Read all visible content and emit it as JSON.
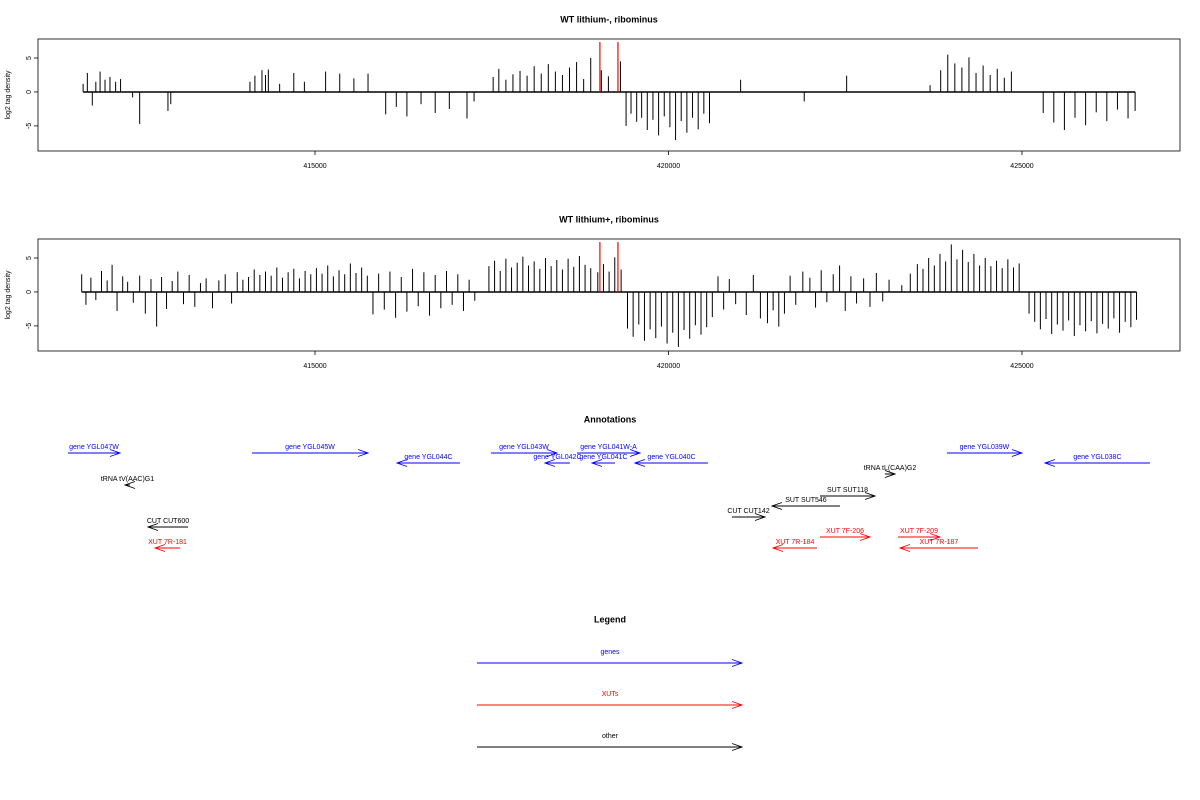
{
  "chart_data": [
    {
      "type": "spike",
      "title": "WT lithium-, ribominus",
      "y_label": "log2 tag density",
      "color": "#000000",
      "xlim": [
        411082,
        427235
      ],
      "ylim": [
        -8.7,
        7.8
      ],
      "xticks": [
        415000,
        420000,
        425000
      ],
      "yticks": [
        -5,
        0,
        5
      ],
      "vlines": {
        "x": [
          419030,
          419285
        ],
        "color": "#ff0000"
      },
      "x": [
        411720,
        411780,
        411850,
        411900,
        411960,
        412030,
        412100,
        412180,
        412250,
        412420,
        412520,
        412920,
        412960,
        414080,
        414150,
        414250,
        414300,
        414340,
        414500,
        414700,
        414850,
        415150,
        415350,
        415550,
        415750,
        416000,
        416150,
        416300,
        416500,
        416700,
        416900,
        417150,
        417250,
        417520,
        417600,
        417700,
        417800,
        417900,
        418000,
        418100,
        418200,
        418300,
        418400,
        418500,
        418600,
        418700,
        418800,
        418900,
        419050,
        419150,
        419320,
        419400,
        419470,
        419550,
        419620,
        419700,
        419780,
        419860,
        419940,
        420020,
        420100,
        420180,
        420260,
        420340,
        420420,
        420500,
        420580,
        421020,
        421920,
        422520,
        423700,
        423850,
        423950,
        424050,
        424150,
        424250,
        424350,
        424450,
        424550,
        424650,
        424750,
        424850,
        425300,
        425450,
        425600,
        425750,
        425900,
        426050,
        426200,
        426350,
        426500,
        426600
      ],
      "values": [
        1.2,
        2.8,
        -2,
        1.5,
        3,
        1.8,
        2.2,
        1.5,
        1.9,
        -0.8,
        -4.7,
        -2.8,
        -1.8,
        1.5,
        2.4,
        3.2,
        2.5,
        3.3,
        1.2,
        2.8,
        1.5,
        3.0,
        2.7,
        2.0,
        2.7,
        -3.3,
        -2.2,
        -3.6,
        -1.8,
        -3.1,
        -2.5,
        -3.9,
        -1.4,
        2.2,
        3.4,
        1.8,
        2.6,
        3.1,
        2.4,
        3.8,
        2.7,
        4.1,
        3.0,
        2.5,
        3.6,
        4.4,
        1.9,
        5.0,
        3.2,
        2.3,
        4.5,
        -5.0,
        -3.2,
        -4.4,
        -3.8,
        -5.6,
        -4.1,
        -6.4,
        -3.6,
        -5.2,
        -7.1,
        -4.3,
        -6.0,
        -3.8,
        -5.5,
        -3.2,
        -4.6,
        1.8,
        -1.4,
        2.4,
        1.0,
        3.2,
        5.5,
        4.2,
        3.6,
        5.1,
        2.8,
        3.9,
        2.5,
        3.4,
        2.1,
        3.0,
        -3.1,
        -4.5,
        -5.6,
        -3.8,
        -4.9,
        -3.0,
        -4.3,
        -2.6,
        -3.9,
        -2.8
      ]
    },
    {
      "type": "spike",
      "title": "WT lithium+, ribominus",
      "y_label": "log2 tag density",
      "color": "#000000",
      "xlim": [
        411082,
        427235
      ],
      "ylim": [
        -8.7,
        7.8
      ],
      "xticks": [
        415000,
        420000,
        425000
      ],
      "yticks": [
        -5,
        0,
        5
      ],
      "vlines": {
        "x": [
          419030,
          419285
        ],
        "color": "#ff0000"
      },
      "x": [
        411700,
        411760,
        411830,
        411900,
        411980,
        412060,
        412130,
        412200,
        412280,
        412350,
        412430,
        412520,
        412600,
        412680,
        412760,
        412830,
        412900,
        412980,
        413060,
        413140,
        413220,
        413300,
        413380,
        413460,
        413550,
        413640,
        413730,
        413820,
        413900,
        413980,
        414060,
        414140,
        414220,
        414300,
        414380,
        414460,
        414540,
        414620,
        414700,
        414780,
        414860,
        414940,
        415020,
        415100,
        415180,
        415260,
        415340,
        415420,
        415500,
        415580,
        415660,
        415740,
        415820,
        415900,
        415980,
        416060,
        416140,
        416220,
        416300,
        416380,
        416460,
        416540,
        416620,
        416700,
        416780,
        416860,
        416940,
        417020,
        417100,
        417180,
        417260,
        417460,
        417540,
        417620,
        417700,
        417780,
        417860,
        417940,
        418020,
        418100,
        418180,
        418260,
        418340,
        418420,
        418500,
        418580,
        418660,
        418740,
        418820,
        418900,
        419000,
        419080,
        419160,
        419240,
        419330,
        419420,
        419500,
        419580,
        419660,
        419740,
        419820,
        419900,
        419980,
        420060,
        420140,
        420220,
        420300,
        420380,
        420460,
        420540,
        420620,
        420700,
        420780,
        420860,
        420950,
        421100,
        421200,
        421300,
        421400,
        421480,
        421560,
        421640,
        421720,
        421800,
        421900,
        422000,
        422080,
        422160,
        422240,
        422330,
        422420,
        422500,
        422580,
        422660,
        422760,
        422850,
        422940,
        423030,
        423120,
        423300,
        423420,
        423520,
        423600,
        423680,
        423760,
        423840,
        423920,
        424000,
        424080,
        424160,
        424240,
        424320,
        424400,
        424480,
        424560,
        424640,
        424720,
        424800,
        424880,
        424960,
        425100,
        425180,
        425260,
        425340,
        425420,
        425500,
        425580,
        425660,
        425740,
        425820,
        425900,
        425980,
        426060,
        426140,
        426220,
        426300,
        426380,
        426460,
        426540,
        426620
      ],
      "values": [
        2.6,
        -1.9,
        2.1,
        -1.2,
        3.1,
        1.7,
        4.0,
        -2.8,
        2.3,
        1.5,
        -1.6,
        2.4,
        -3.2,
        1.9,
        -5.1,
        2.2,
        -2.5,
        1.6,
        3.0,
        -1.8,
        2.5,
        -2.2,
        1.3,
        2.0,
        -2.4,
        1.7,
        2.6,
        -1.7,
        2.9,
        1.8,
        2.2,
        3.3,
        2.5,
        3.0,
        2.4,
        3.6,
        2.1,
        2.9,
        3.4,
        2.0,
        3.1,
        2.6,
        3.5,
        2.7,
        3.9,
        2.3,
        3.2,
        2.6,
        4.2,
        2.8,
        3.6,
        2.4,
        -3.3,
        2.7,
        -2.6,
        3.0,
        -3.8,
        2.2,
        -2.9,
        3.4,
        -2.1,
        2.9,
        -3.5,
        2.5,
        -2.4,
        3.1,
        -1.9,
        2.6,
        -2.8,
        1.8,
        -1.3,
        3.8,
        4.6,
        3.1,
        4.9,
        3.6,
        4.3,
        5.2,
        3.9,
        4.5,
        3.4,
        5.0,
        3.8,
        4.7,
        3.3,
        4.9,
        3.7,
        5.3,
        4.0,
        3.5,
        2.9,
        4.1,
        3.0,
        5.1,
        3.3,
        -5.4,
        -6.6,
        -4.8,
        -7.2,
        -5.5,
        -6.8,
        -5.1,
        -7.6,
        -6.0,
        -8.1,
        -5.6,
        -6.9,
        -4.9,
        -6.3,
        -5.2,
        -3.7,
        2.3,
        -2.6,
        1.9,
        -1.8,
        -3.4,
        2.5,
        -3.9,
        -4.6,
        -2.7,
        -5.1,
        -3.2,
        2.4,
        -1.9,
        3.0,
        2.1,
        -2.3,
        3.2,
        -1.5,
        2.6,
        3.9,
        -2.8,
        2.3,
        -1.7,
        2.0,
        -2.2,
        2.8,
        -1.4,
        1.8,
        1.0,
        2.7,
        4.1,
        3.4,
        5.0,
        3.9,
        5.6,
        4.5,
        7.0,
        4.8,
        6.2,
        4.4,
        5.6,
        3.9,
        5.0,
        3.8,
        4.6,
        3.5,
        4.8,
        3.6,
        4.2,
        -3.2,
        -4.4,
        -5.5,
        -4.0,
        -6.2,
        -4.8,
        -5.7,
        -4.2,
        -6.5,
        -4.9,
        -5.8,
        -4.3,
        -6.1,
        -4.7,
        -5.4,
        -3.9,
        -6.0,
        -4.4,
        -5.2,
        -4.1
      ]
    }
  ],
  "annotations": {
    "title": "Annotations",
    "items": [
      {
        "label": "gene YGL047W",
        "start": 411506,
        "end": 412242,
        "strand": "+",
        "color": "#0000ff"
      },
      {
        "label": "gene YGL045W",
        "start": 414109,
        "end": 415750,
        "strand": "+",
        "color": "#0000ff"
      },
      {
        "label": "gene YGL044C",
        "start": 416160,
        "end": 417050,
        "strand": "-",
        "color": "#0000ff"
      },
      {
        "label": "gene YGL043W",
        "start": 417489,
        "end": 418423,
        "strand": "+",
        "color": "#0000ff"
      },
      {
        "label": "gene YGL041W-A",
        "start": 418706,
        "end": 419597,
        "strand": "+",
        "color": "#0000ff"
      },
      {
        "label": "gene YGL042C",
        "start": 418253,
        "end": 418606,
        "strand": "-",
        "color": "#0000ff"
      },
      {
        "label": "gene YGL041C",
        "start": 418918,
        "end": 419243,
        "strand": "-",
        "color": "#0000ff"
      },
      {
        "label": "gene YGL040C",
        "start": 419526,
        "end": 420559,
        "strand": "-",
        "color": "#0000ff"
      },
      {
        "label": "gene YGL039W",
        "start": 423939,
        "end": 424999,
        "strand": "+",
        "color": "#0000ff"
      },
      {
        "label": "gene YGL038C",
        "start": 425325,
        "end": 426810,
        "strand": "-",
        "color": "#0000ff"
      },
      {
        "label": "tRNA tV(AAC)G1",
        "start": 412313,
        "end": 412383,
        "strand": "-",
        "color": "#000000"
      },
      {
        "label": "tRNA tL(CAA)G2",
        "start": 423062,
        "end": 423204,
        "strand": "+",
        "color": "#000000"
      },
      {
        "label": "SUT SUT118",
        "start": 422143,
        "end": 422921,
        "strand": "+",
        "color": "#000000"
      },
      {
        "label": "SUT SUT546",
        "start": 421464,
        "end": 422425,
        "strand": "-",
        "color": "#000000"
      },
      {
        "label": "CUT CUT142",
        "start": 420898,
        "end": 421365,
        "strand": "+",
        "color": "#000000"
      },
      {
        "label": "CUT CUT600",
        "start": 412638,
        "end": 413204,
        "strand": "-",
        "color": "#000000"
      },
      {
        "label": "XUT 7R-181",
        "start": 412737,
        "end": 413091,
        "strand": "-",
        "color": "#ff0000"
      },
      {
        "label": "XUT 7F-206",
        "start": 422143,
        "end": 422850,
        "strand": "+",
        "color": "#ff0000"
      },
      {
        "label": "XUT 7R-184",
        "start": 421478,
        "end": 422100,
        "strand": "-",
        "color": "#ff0000"
      },
      {
        "label": "XUT 7F-209",
        "start": 423246,
        "end": 423840,
        "strand": "+",
        "color": "#ff0000"
      },
      {
        "label": "XUT 7R-187",
        "start": 423274,
        "end": 424377,
        "strand": "-",
        "color": "#ff0000"
      }
    ]
  },
  "legend": {
    "title": "Legend",
    "entries": [
      {
        "name": "genes",
        "color": "#0000ff"
      },
      {
        "name": "XUTs",
        "color": "#ff0000"
      },
      {
        "name": "other",
        "color": "#000000"
      }
    ]
  }
}
